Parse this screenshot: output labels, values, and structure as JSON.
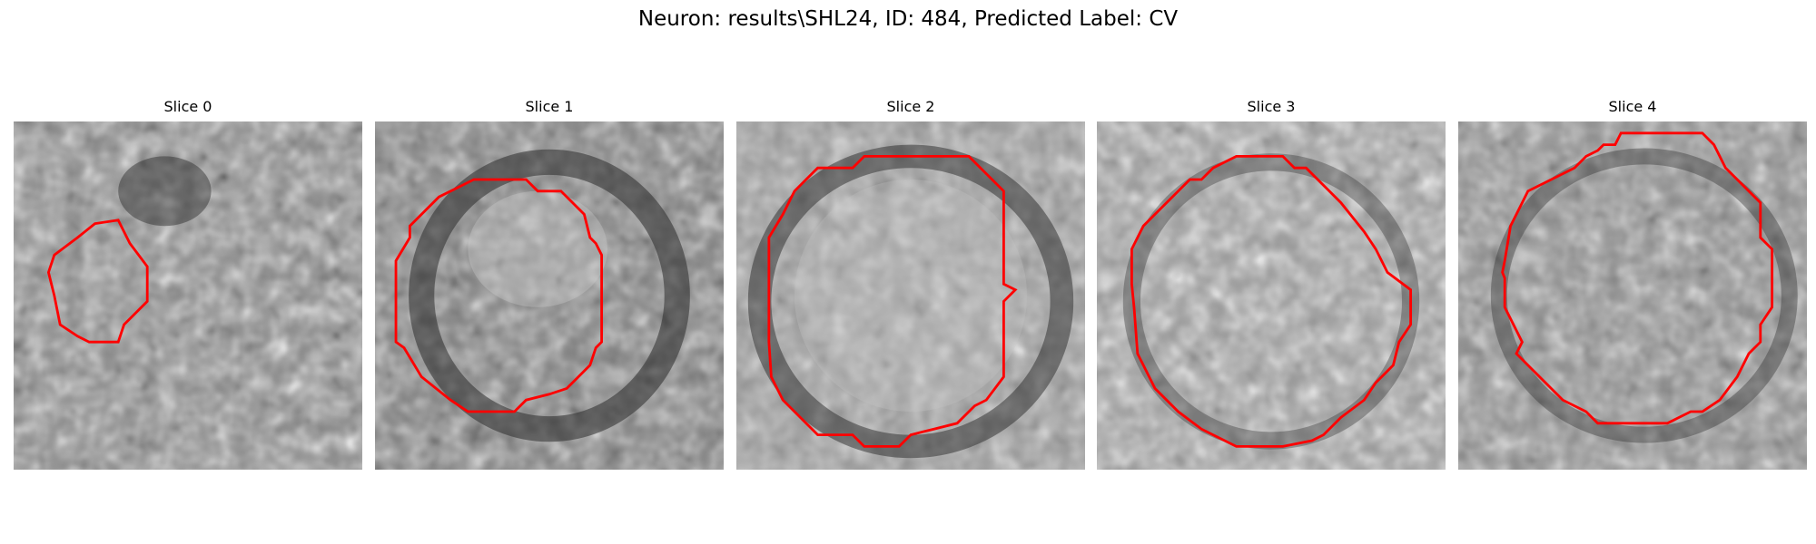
{
  "figure": {
    "title": "Neuron: results\\SHL24, ID: 484, Predicted Label: CV"
  },
  "slices": [
    {
      "title": "Slice 0"
    },
    {
      "title": "Slice 1"
    },
    {
      "title": "Slice 2"
    },
    {
      "title": "Slice 3"
    },
    {
      "title": "Slice 4"
    }
  ],
  "colors": {
    "contour": "#ff0000",
    "background": "#ffffff"
  },
  "image_description_keys": [
    "grayscale-noise-texture",
    "red-contour-outline"
  ]
}
